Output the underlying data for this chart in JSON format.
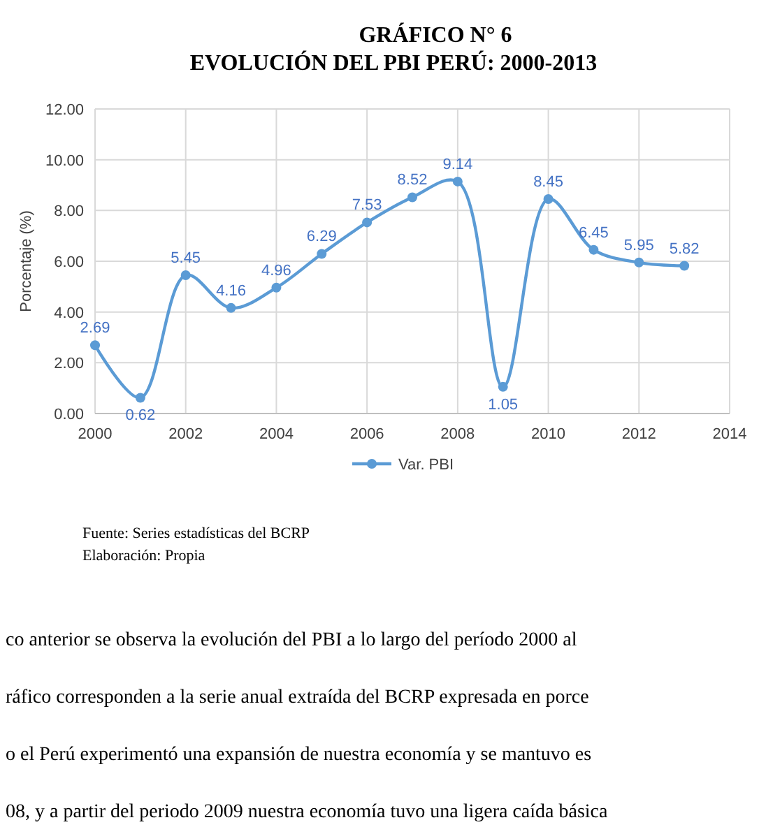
{
  "chart_data": {
    "type": "line",
    "title": "GRÁFICO N° 6",
    "subtitle": "EVOLUCIÓN DEL PBI PERÚ: 2000-2013",
    "ylabel": "Porcentaje (%)",
    "x": [
      2000,
      2001,
      2002,
      2003,
      2004,
      2005,
      2006,
      2007,
      2008,
      2009,
      2010,
      2011,
      2012,
      2013
    ],
    "series": [
      {
        "name": "Var. PBI",
        "color": "#5b9bd5",
        "values": [
          2.69,
          0.62,
          5.45,
          4.16,
          4.96,
          6.29,
          7.53,
          8.52,
          9.14,
          1.05,
          8.45,
          6.45,
          5.95,
          5.82
        ]
      }
    ],
    "value_labels": [
      "2.69",
      "0.62",
      "5.45",
      "4.16",
      "4.96",
      "6.29",
      "7.53",
      "8.52",
      "9.14",
      "1.05",
      "8.45",
      "6.45",
      "5.95",
      "5.82"
    ],
    "xlim": [
      2000,
      2014
    ],
    "xticks": [
      2000,
      2002,
      2004,
      2006,
      2008,
      2010,
      2012,
      2014
    ],
    "ylim": [
      0,
      12
    ],
    "yticks": [
      {
        "value": 0,
        "label": "0.00"
      },
      {
        "value": 2,
        "label": "2.00"
      },
      {
        "value": 4,
        "label": "4.00"
      },
      {
        "value": 6,
        "label": "6.00"
      },
      {
        "value": 8,
        "label": "8.00"
      },
      {
        "value": 10,
        "label": "10.00"
      },
      {
        "value": 12,
        "label": "12.00"
      }
    ],
    "grid": true,
    "legend": "bottom",
    "marker": "circle",
    "line_style": "solid",
    "annotations": [
      "Fuente: Series estadísticas del BCRP",
      "Elaboración: Propia",
      "co anterior se observa la evolución del PBI a lo largo del período 2000 al",
      "ráfico corresponden a la serie anual extraída del BCRP expresada en porce",
      "o el Perú experimentó una expansión de nuestra economía y se mantuvo es",
      "08, y a partir del periodo 2009 nuestra economía tuvo una ligera caída básica"
    ]
  }
}
